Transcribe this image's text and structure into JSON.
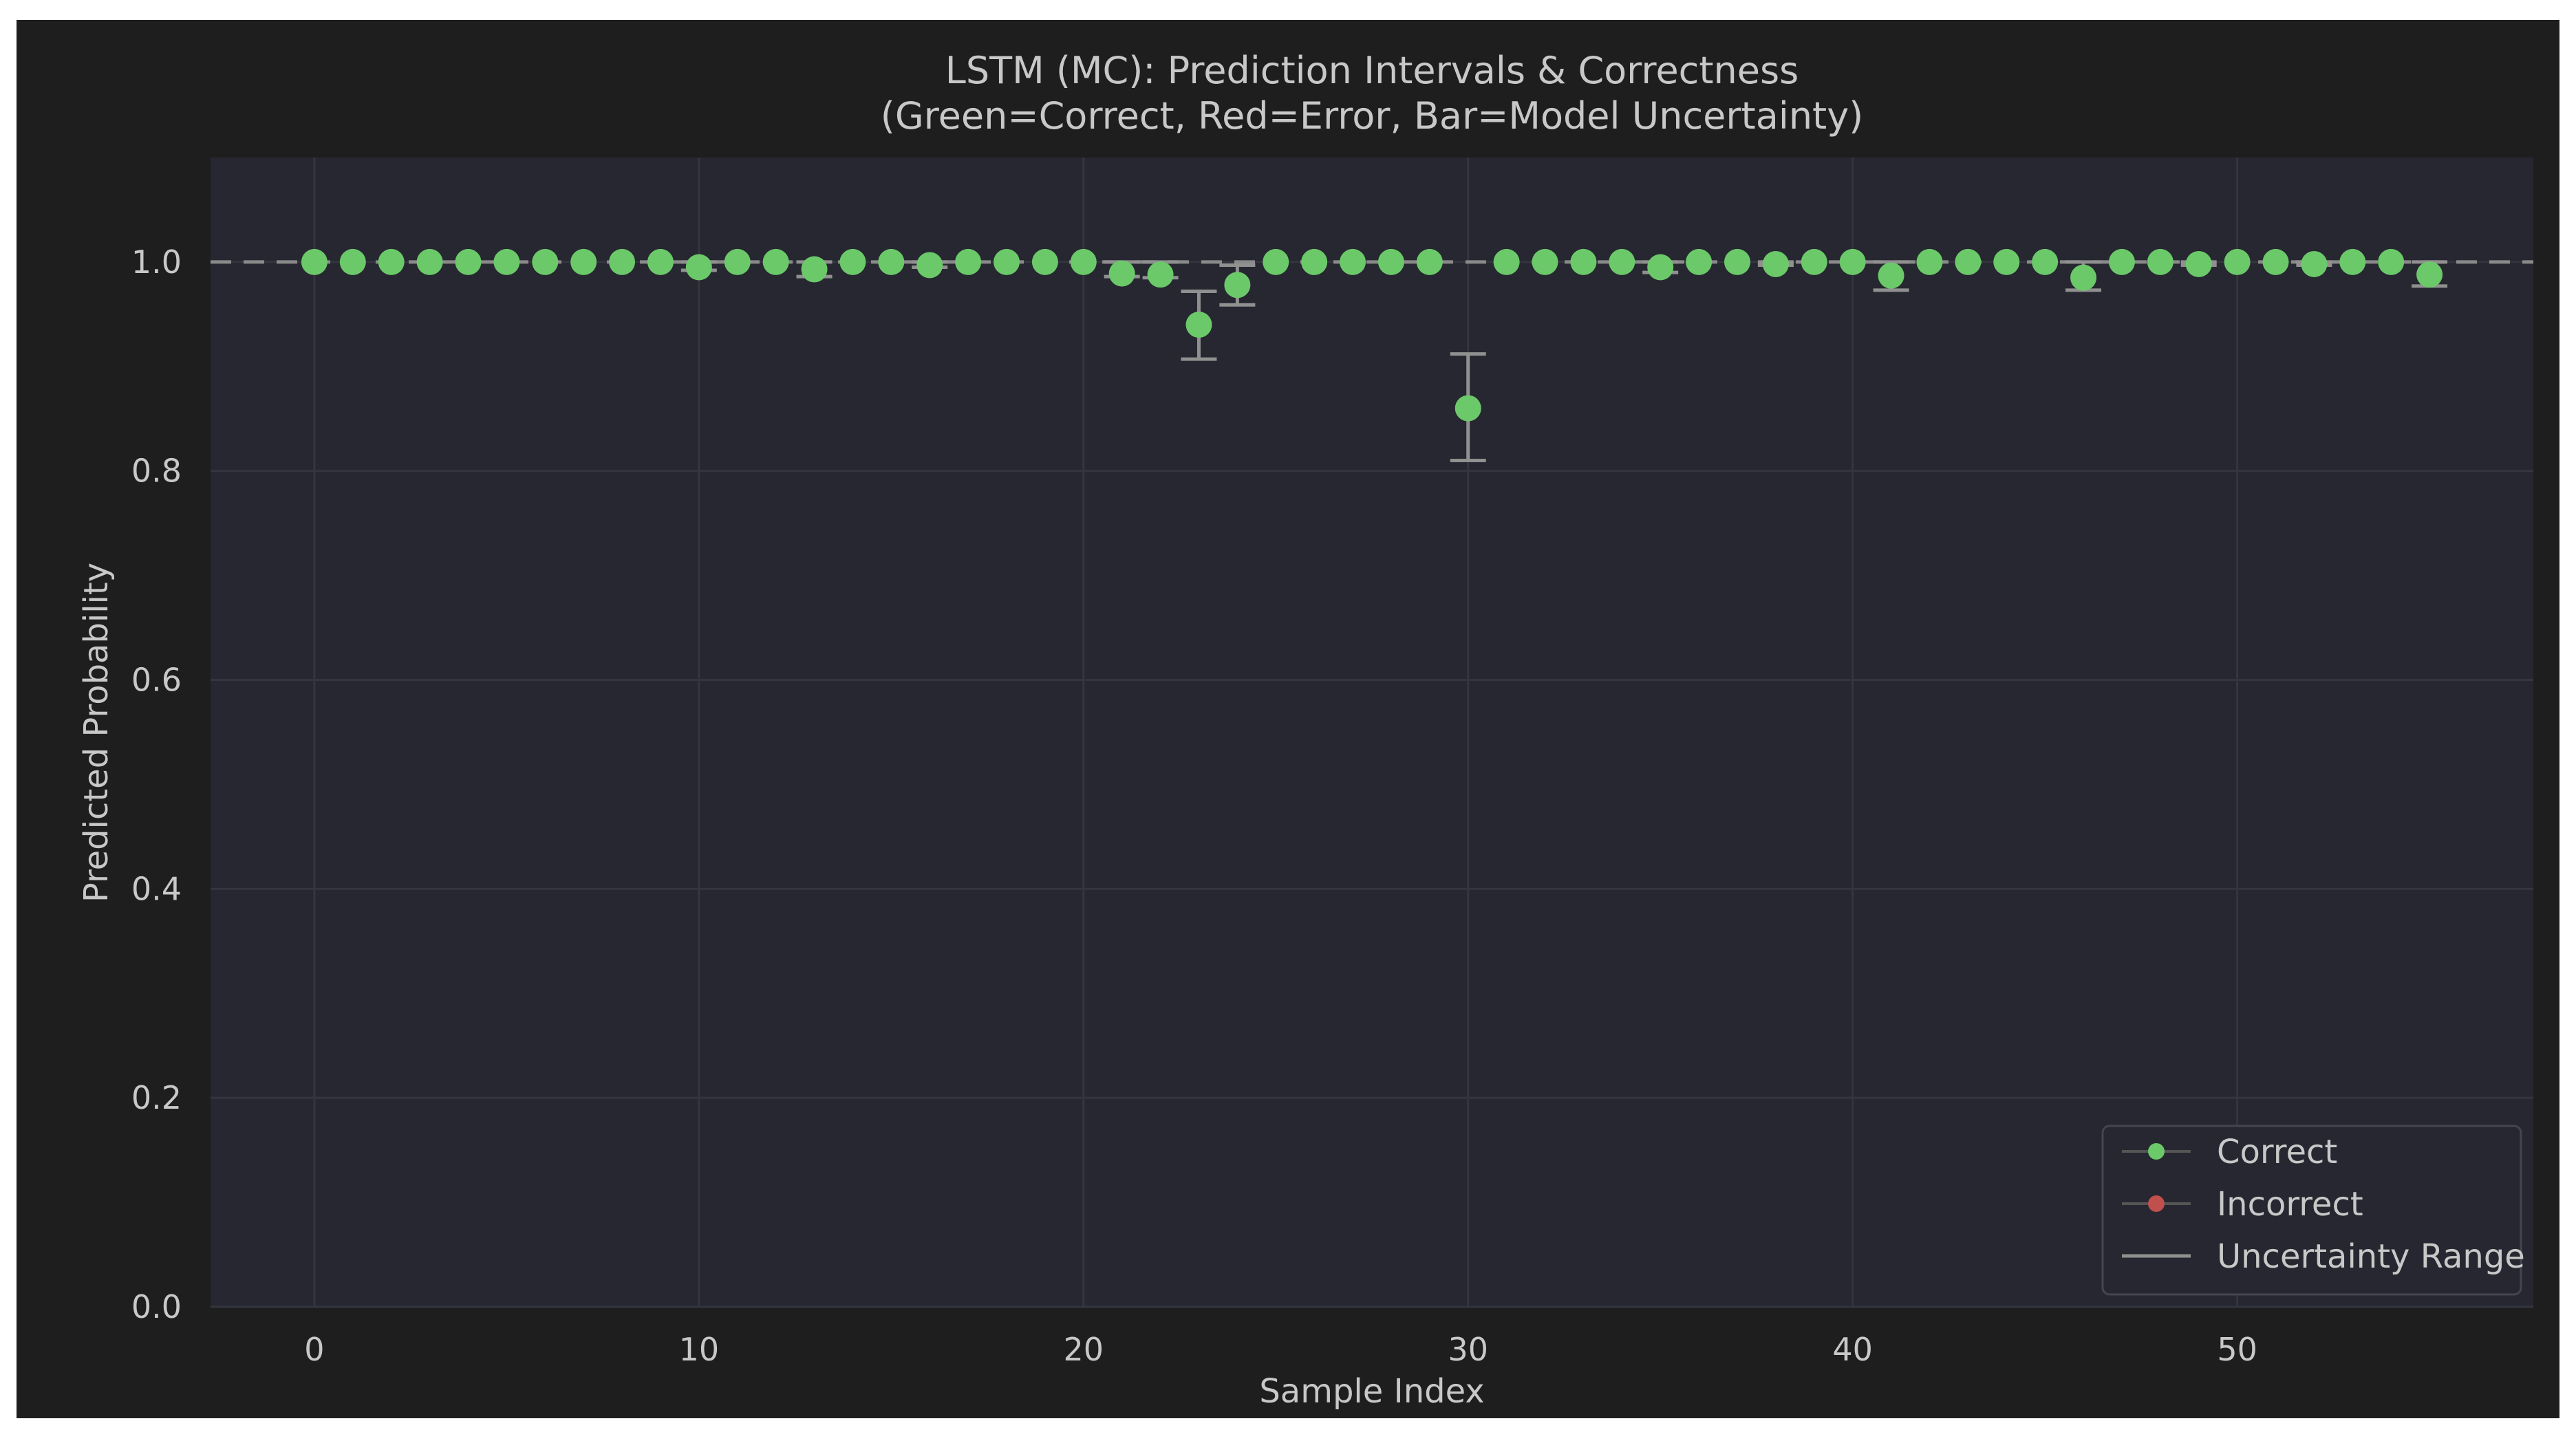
{
  "chart_data": {
    "type": "scatter",
    "title": "LSTM (MC): Prediction Intervals & Correctness",
    "subtitle": "(Green=Correct, Red=Error, Bar=Model Uncertainty)",
    "xlabel": "Sample Index",
    "ylabel": "Predicted Probability",
    "xlim": [
      -2.7,
      57.7
    ],
    "ylim": [
      0.0,
      1.1
    ],
    "xticks": [
      0,
      10,
      20,
      30,
      40,
      50
    ],
    "yticks": [
      0.0,
      0.2,
      0.4,
      0.6,
      0.8,
      1.0
    ],
    "xtick_labels": [
      "0",
      "10",
      "20",
      "30",
      "40",
      "50"
    ],
    "ytick_labels": [
      "0.0",
      "0.2",
      "0.4",
      "0.6",
      "0.8",
      "1.0"
    ],
    "reference_line": 1.0,
    "grid": true,
    "legend_position": "bottom-right",
    "legend": [
      {
        "label": "Correct",
        "color": "#6cc96a",
        "kind": "marker"
      },
      {
        "label": "Incorrect",
        "color": "#c0504d",
        "kind": "marker"
      },
      {
        "label": "Uncertainty Range",
        "color": "#909090",
        "kind": "line"
      }
    ],
    "colors": {
      "correct": "#6cc96a",
      "incorrect": "#c0504d",
      "errorbar": "#909090",
      "reference": "#8a8a8a",
      "figure_bg": "#1e1e1e",
      "axes_bg": "#262730",
      "grid": "#34353f",
      "text": "#c8c8c8"
    },
    "series": [
      {
        "name": "Correct",
        "x": [
          0,
          1,
          2,
          3,
          4,
          5,
          6,
          7,
          8,
          9,
          10,
          11,
          12,
          13,
          14,
          15,
          16,
          17,
          18,
          19,
          20,
          21,
          22,
          23,
          24,
          25,
          26,
          27,
          28,
          29,
          30,
          31,
          32,
          33,
          34,
          35,
          36,
          37,
          38,
          39,
          40,
          41,
          42,
          43,
          44,
          45,
          46,
          47,
          48,
          49,
          50,
          51,
          52,
          53,
          54,
          55
        ],
        "y": [
          1.0,
          1.0,
          1.0,
          1.0,
          1.0,
          1.0,
          1.0,
          1.0,
          1.0,
          1.0,
          0.995,
          1.0,
          1.0,
          0.993,
          1.0,
          1.0,
          0.997,
          1.0,
          1.0,
          1.0,
          1.0,
          0.989,
          0.988,
          0.94,
          0.978,
          1.0,
          1.0,
          1.0,
          1.0,
          1.0,
          0.86,
          1.0,
          1.0,
          1.0,
          1.0,
          0.995,
          1.0,
          1.0,
          0.998,
          1.0,
          1.0,
          0.987,
          1.0,
          1.0,
          1.0,
          1.0,
          0.985,
          1.0,
          1.0,
          0.998,
          1.0,
          1.0,
          0.998,
          1.0,
          1.0,
          0.988
        ],
        "lower": [
          1.0,
          1.0,
          1.0,
          1.0,
          1.0,
          1.0,
          1.0,
          1.0,
          1.0,
          1.0,
          0.992,
          1.0,
          1.0,
          0.986,
          1.0,
          1.0,
          0.995,
          1.0,
          1.0,
          1.0,
          1.0,
          0.986,
          0.985,
          0.907,
          0.959,
          1.0,
          1.0,
          1.0,
          1.0,
          1.0,
          0.81,
          1.0,
          1.0,
          1.0,
          1.0,
          0.99,
          1.0,
          1.0,
          0.997,
          1.0,
          1.0,
          0.973,
          1.0,
          1.0,
          1.0,
          1.0,
          0.973,
          1.0,
          1.0,
          0.997,
          1.0,
          1.0,
          0.997,
          1.0,
          1.0,
          0.977
        ],
        "upper": [
          1.0,
          1.0,
          1.0,
          1.0,
          1.0,
          1.0,
          1.0,
          1.0,
          1.0,
          1.0,
          1.0,
          1.0,
          1.0,
          1.0,
          1.0,
          1.0,
          1.0,
          1.0,
          1.0,
          1.0,
          1.0,
          1.0,
          1.0,
          0.972,
          0.997,
          1.0,
          1.0,
          1.0,
          1.0,
          1.0,
          0.912,
          1.0,
          1.0,
          1.0,
          1.0,
          1.0,
          1.0,
          1.0,
          1.0,
          1.0,
          1.0,
          1.0,
          1.0,
          1.0,
          1.0,
          1.0,
          1.0,
          1.0,
          1.0,
          1.0,
          1.0,
          1.0,
          1.0,
          1.0,
          1.0,
          1.0
        ]
      },
      {
        "name": "Incorrect",
        "x": [],
        "y": [],
        "lower": [],
        "upper": []
      }
    ]
  }
}
